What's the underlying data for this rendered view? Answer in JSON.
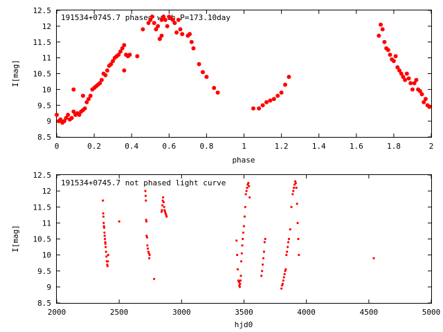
{
  "chart_data": [
    {
      "type": "scatter",
      "title": "191534+0745.7 phased with P=173.10day",
      "xlabel": "phase",
      "ylabel": "I[mag]",
      "xlim": [
        0,
        2
      ],
      "ylim": [
        12.5,
        8.5
      ],
      "y_inverted": true,
      "grid": false,
      "x_ticks": [
        "0",
        "0.2",
        "0.4",
        "0.6",
        "0.8",
        "1",
        "1.2",
        "1.4",
        "1.6",
        "1.8",
        "2"
      ],
      "y_ticks": [
        "8.5",
        "9",
        "9.5",
        "10",
        "10.5",
        "11",
        "11.5",
        "12",
        "12.5"
      ],
      "marker": "filled-circle",
      "series": [
        {
          "color": "#ff0000",
          "x": [
            0.0,
            0.01,
            0.02,
            0.03,
            0.04,
            0.05,
            0.06,
            0.07,
            0.08,
            0.09,
            0.1,
            0.11,
            0.12,
            0.13,
            0.14,
            0.15,
            0.16,
            0.17,
            0.18,
            0.19,
            0.2,
            0.21,
            0.22,
            0.23,
            0.24,
            0.25,
            0.26,
            0.27,
            0.28,
            0.29,
            0.3,
            0.31,
            0.32,
            0.33,
            0.34,
            0.35,
            0.36,
            0.37,
            0.38,
            0.39,
            0.43,
            0.46,
            0.49,
            0.5,
            0.51,
            0.52,
            0.53,
            0.54,
            0.55,
            0.56,
            0.57,
            0.58,
            0.59,
            0.6,
            0.61,
            0.62,
            0.63,
            0.64,
            0.65,
            0.66,
            0.67,
            0.7,
            0.71,
            0.72,
            0.73,
            0.76,
            0.78,
            0.8,
            0.84,
            0.86,
            0.09,
            0.14,
            0.36,
            0.55,
            0.56,
            1.05,
            1.08,
            1.1,
            1.12,
            1.14,
            1.16,
            1.18,
            1.2,
            1.22,
            1.24,
            1.72,
            1.73,
            1.74,
            1.75,
            1.76,
            1.77,
            1.78,
            1.79,
            1.8,
            1.81,
            1.82,
            1.83,
            1.84,
            1.85,
            1.86,
            1.87,
            1.88,
            1.89,
            1.9,
            1.91,
            1.92,
            1.93,
            1.94,
            1.95,
            1.96,
            1.97,
            1.98,
            1.99
          ],
          "y": [
            9.2,
            9.0,
            9.05,
            8.95,
            9.0,
            9.1,
            9.2,
            9.05,
            9.1,
            9.3,
            9.2,
            9.25,
            9.2,
            9.3,
            9.35,
            9.4,
            9.6,
            9.7,
            9.8,
            10.0,
            10.05,
            10.1,
            10.15,
            10.2,
            10.3,
            10.5,
            10.45,
            10.6,
            10.75,
            10.8,
            10.9,
            11.0,
            11.05,
            11.1,
            11.2,
            11.3,
            11.4,
            11.1,
            11.05,
            11.1,
            11.05,
            11.9,
            12.1,
            12.2,
            12.3,
            12.1,
            11.9,
            12.0,
            11.6,
            12.2,
            12.3,
            12.2,
            12.0,
            12.3,
            12.25,
            12.2,
            12.1,
            11.8,
            12.2,
            11.9,
            11.75,
            11.7,
            11.75,
            11.5,
            11.3,
            10.8,
            10.55,
            10.4,
            10.05,
            9.9,
            10.0,
            9.8,
            10.6,
            11.6,
            11.7,
            9.4,
            9.4,
            9.5,
            9.6,
            9.65,
            9.7,
            9.8,
            9.9,
            10.15,
            10.4,
            11.7,
            12.05,
            11.9,
            11.5,
            11.3,
            11.25,
            11.1,
            10.95,
            10.9,
            11.05,
            10.7,
            10.6,
            10.5,
            10.4,
            10.3,
            10.5,
            10.35,
            10.2,
            10.0,
            10.2,
            10.3,
            10.0,
            9.95,
            9.85,
            9.6,
            9.7,
            9.5,
            9.45
          ]
        }
      ]
    },
    {
      "type": "scatter",
      "title": "191534+0745.7 not phased light curve",
      "xlabel": "hjd0",
      "ylabel": "I[mag]",
      "xlim": [
        2000,
        5000
      ],
      "ylim": [
        12.5,
        8.5
      ],
      "y_inverted": true,
      "grid": false,
      "x_ticks": [
        "2000",
        "2500",
        "3000",
        "3500",
        "4000",
        "4500",
        "5000"
      ],
      "y_ticks": [
        "8.5",
        "9",
        "9.5",
        "10",
        "10.5",
        "11",
        "11.5",
        "12",
        "12.5"
      ],
      "marker": "small-dot",
      "series": [
        {
          "color": "#ff0000",
          "x": [
            2370,
            2372,
            2374,
            2376,
            2378,
            2380,
            2382,
            2384,
            2386,
            2388,
            2390,
            2392,
            2395,
            2398,
            2401,
            2404,
            2407,
            2410,
            2412,
            2500,
            2710,
            2712,
            2714,
            2716,
            2718,
            2720,
            2723,
            2726,
            2730,
            2734,
            2738,
            2741,
            2744,
            2780,
            2840,
            2843,
            2846,
            2849,
            2852,
            2856,
            2860,
            2864,
            2868,
            2872,
            2876,
            2880,
            3440,
            3445,
            3450,
            3455,
            3460,
            3463,
            3466,
            3469,
            3472,
            3475,
            3478,
            3482,
            3486,
            3490,
            3494,
            3500,
            3505,
            3510,
            3515,
            3520,
            3525,
            3530,
            3535,
            3540,
            3545,
            3640,
            3645,
            3650,
            3655,
            3660,
            3665,
            3670,
            3800,
            3805,
            3810,
            3815,
            3820,
            3825,
            3830,
            3835,
            3840,
            3845,
            3850,
            3855,
            3860,
            3870,
            3880,
            3890,
            3895,
            3900,
            3905,
            3910,
            3915,
            3920,
            3925,
            3930,
            3935,
            3940,
            4540
          ],
          "y": [
            11.7,
            11.3,
            11.2,
            11.0,
            10.9,
            10.85,
            10.7,
            10.6,
            10.5,
            10.4,
            10.35,
            10.25,
            10.1,
            9.95,
            9.8,
            9.7,
            9.65,
            9.8,
            10.0,
            11.05,
            12.0,
            11.85,
            11.7,
            11.1,
            11.05,
            10.6,
            10.55,
            10.3,
            10.2,
            10.1,
            10.05,
            9.9,
            10.0,
            9.25,
            11.35,
            11.4,
            11.55,
            11.7,
            11.8,
            11.65,
            11.5,
            11.4,
            11.35,
            11.3,
            11.25,
            11.2,
            10.45,
            10.0,
            9.55,
            9.2,
            9.15,
            9.05,
            9.0,
            9.1,
            9.2,
            9.35,
            9.8,
            10.05,
            10.3,
            10.5,
            10.7,
            10.9,
            11.2,
            11.5,
            11.9,
            12.0,
            12.1,
            12.2,
            12.25,
            12.15,
            11.8,
            9.35,
            9.5,
            9.7,
            9.9,
            10.1,
            10.4,
            10.5,
            8.95,
            9.05,
            9.1,
            9.2,
            9.3,
            9.4,
            9.5,
            9.55,
            10.0,
            10.1,
            10.25,
            10.4,
            10.5,
            10.8,
            11.5,
            11.9,
            12.0,
            12.1,
            12.2,
            12.3,
            12.25,
            12.1,
            11.6,
            11.0,
            10.5,
            10.0,
            9.9
          ]
        }
      ]
    }
  ]
}
